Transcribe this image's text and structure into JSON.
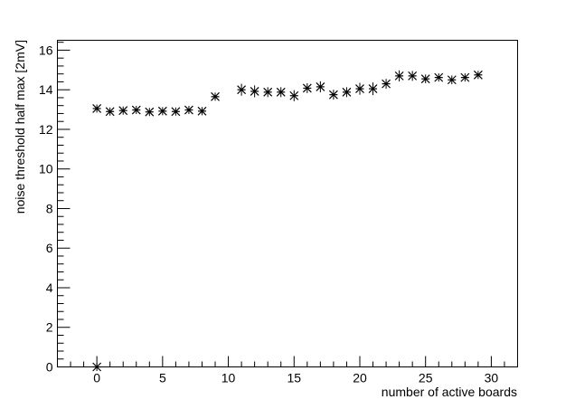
{
  "chart_data": {
    "type": "scatter",
    "title": "",
    "xlabel": "number of active boards",
    "ylabel": "noise threshold half max [2mV]",
    "xlim": [
      -3,
      32
    ],
    "ylim": [
      0,
      16.5
    ],
    "x_major_ticks": [
      0,
      5,
      10,
      15,
      20,
      25,
      30
    ],
    "y_major_ticks": [
      0,
      2,
      4,
      6,
      8,
      10,
      12,
      14,
      16
    ],
    "grid": false,
    "legend": "none",
    "marker": "star",
    "color": "#000000",
    "series": [
      {
        "x": [
          0,
          1,
          2,
          3,
          4,
          5,
          6,
          7,
          8,
          9,
          11,
          12,
          13,
          14,
          15,
          16,
          17,
          18,
          19,
          20,
          21,
          22,
          23,
          24,
          25,
          26,
          27,
          28,
          29
        ],
        "y": [
          13.05,
          12.9,
          12.95,
          12.98,
          12.88,
          12.92,
          12.9,
          12.98,
          12.92,
          13.65,
          14.0,
          13.92,
          13.88,
          13.88,
          13.7,
          14.08,
          14.15,
          13.75,
          13.88,
          14.05,
          14.05,
          14.3,
          14.7,
          14.7,
          14.55,
          14.62,
          14.5,
          14.62,
          14.75
        ],
        "yerr": [
          0.15,
          0.12,
          0.15,
          0.18,
          0.12,
          0.18,
          0.12,
          0.15,
          0.18,
          0.15,
          0.3,
          0.3,
          0.25,
          0.25,
          0.28,
          0.25,
          0.28,
          0.25,
          0.25,
          0.3,
          0.32,
          0.25,
          0.28,
          0.25,
          0.22,
          0.2,
          0.22,
          0.2,
          0.2
        ]
      },
      {
        "x": [
          0
        ],
        "y": [
          0
        ],
        "yerr": [
          0.12
        ]
      }
    ]
  }
}
